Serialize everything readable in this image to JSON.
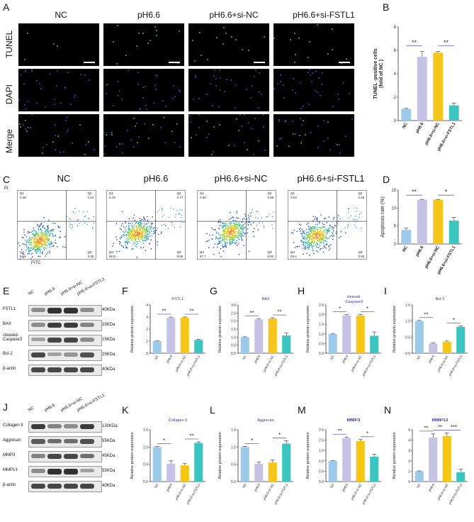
{
  "panel_letters": {
    "A": "A",
    "B": "B",
    "C": "C",
    "D": "D",
    "E": "E",
    "F": "F",
    "G": "G",
    "H": "H",
    "I": "I",
    "J": "J",
    "K": "K",
    "L": "L",
    "M": "M",
    "N": "N"
  },
  "groups": [
    "NC",
    "pH6.6",
    "pH6.6+si-NC",
    "pH6.6+si-FSTL1"
  ],
  "micro_rows": [
    "TUNEL",
    "DAPI",
    "Merge"
  ],
  "flow": {
    "ylabel": "PI",
    "xlabel": "FITC",
    "quadrants": [
      {
        "q1": "Q1",
        "q1v": "0.38",
        "q2": "Q2",
        "q2v": "1.54",
        "q3": "Q3",
        "q3v": "3.35",
        "q4": "Q4",
        "q4v": "94.6"
      },
      {
        "q1": "Q1",
        "q1v": "0.15",
        "q2": "Q2",
        "q2v": "3.77",
        "q3": "Q3",
        "q3v": "8.65",
        "q4": "Q4",
        "q4v": "88.0"
      },
      {
        "q1": "Q1",
        "q1v": "0.60",
        "q2": "Q2",
        "q2v": "5.86",
        "q3": "Q3",
        "q3v": "6.82",
        "q4": "Q4",
        "q4v": "87.7"
      },
      {
        "q1": "Q1",
        "q1v": "0.63",
        "q2": "Q2",
        "q2v": "2.46",
        "q3": "Q3",
        "q3v": "3.82",
        "q4": "Q4",
        "q4v": "93.4"
      }
    ]
  },
  "blot_E": {
    "lanes": [
      "NC",
      "pH6.6",
      "pH6.6+si-NC",
      "pH6.6+si-FSTL1"
    ],
    "rows": [
      {
        "name": "FSTL1",
        "kda": "40KDa",
        "intensity": [
          0.45,
          0.9,
          0.9,
          0.45
        ]
      },
      {
        "name": "BAX",
        "kda": "15KDa",
        "intensity": [
          0.45,
          0.85,
          0.85,
          0.5
        ]
      },
      {
        "name": "cleaved-Caspase3",
        "kda": "15KDa",
        "intensity": [
          0.35,
          0.8,
          0.8,
          0.45
        ]
      },
      {
        "name": "Bcl-2",
        "kda": "25KDa",
        "intensity": [
          0.8,
          0.35,
          0.4,
          0.75
        ]
      },
      {
        "name": "β-actin",
        "kda": "40KDa",
        "intensity": [
          0.8,
          0.8,
          0.8,
          0.8
        ]
      }
    ]
  },
  "blot_J": {
    "lanes": [
      "NC",
      "pH6.6",
      "pH6.6+si-NC",
      "pH6.6+si-FSTL1"
    ],
    "rows": [
      {
        "name": "Collagen II",
        "kda": "130KDa",
        "intensity": [
          0.85,
          0.5,
          0.45,
          0.85
        ]
      },
      {
        "name": "Aggrecan",
        "kda": "55KDa",
        "intensity": [
          0.7,
          0.6,
          0.6,
          0.75
        ]
      },
      {
        "name": "MMP3",
        "kda": "45KDa",
        "intensity": [
          0.5,
          0.8,
          0.8,
          0.6
        ]
      },
      {
        "name": "MMP13",
        "kda": "55KDa",
        "intensity": [
          0.45,
          0.9,
          0.9,
          0.35
        ]
      },
      {
        "name": "β-actin",
        "kda": "40KDa",
        "intensity": [
          0.8,
          0.8,
          0.8,
          0.8
        ]
      }
    ]
  },
  "colors": [
    "#9ecae9",
    "#c6c2e4",
    "#f5c518",
    "#3cc4c0"
  ],
  "chart_data": [
    {
      "id": "B",
      "type": "bar",
      "title": "",
      "ylabel": "TUNEL -positive cells\n(fold of NC )",
      "categories": [
        "NC",
        "pH6.6",
        "pH6.6+si-NC",
        "pH6.6+si-FSTL1"
      ],
      "values": [
        1.0,
        5.45,
        5.8,
        1.3
      ],
      "errors": [
        0.05,
        0.45,
        0.1,
        0.2
      ],
      "ylim": [
        0,
        8
      ],
      "yticks": [
        0,
        2,
        4,
        6,
        8
      ],
      "sig": [
        {
          "from": 0,
          "to": 1,
          "label": "**"
        },
        {
          "from": 2,
          "to": 3,
          "label": "**"
        }
      ]
    },
    {
      "id": "D",
      "type": "bar",
      "title": "",
      "ylabel": "Apoptosis rate (%)",
      "categories": [
        "NC",
        "pH6.6",
        "pH6.6+si-NC",
        "pH6.6+si-FSTL1"
      ],
      "values": [
        3.9,
        12.3,
        12.3,
        6.5
      ],
      "errors": [
        0.5,
        0.1,
        0.1,
        0.9
      ],
      "ylim": [
        0,
        15
      ],
      "yticks": [
        0,
        5,
        10,
        15
      ],
      "sig": [
        {
          "from": 0,
          "to": 1,
          "label": "**"
        },
        {
          "from": 2,
          "to": 3,
          "label": "*"
        }
      ]
    },
    {
      "id": "F",
      "type": "bar",
      "title": "FSTL1",
      "ylabel": "Relative protein expression",
      "categories": [
        "NC",
        "pH6.6",
        "pH6.6+si-NC",
        "pH6.6+si-FSTL1"
      ],
      "values": [
        1.0,
        2.95,
        2.95,
        1.1
      ],
      "errors": [
        0.02,
        0.05,
        0.05,
        0.05
      ],
      "ylim": [
        0,
        4
      ],
      "yticks": [
        0,
        1,
        2,
        3,
        4
      ],
      "sig": [
        {
          "from": 0,
          "to": 1,
          "label": "**"
        },
        {
          "from": 2,
          "to": 3,
          "label": "**"
        }
      ]
    },
    {
      "id": "G",
      "type": "bar",
      "title": "BAX",
      "ylabel": "Relative protein expression",
      "categories": [
        "NC",
        "pH6.6",
        "pH6.6+si-NC",
        "pH6.6+si-FSTL1"
      ],
      "values": [
        1.0,
        2.1,
        2.15,
        1.1
      ],
      "errors": [
        0.02,
        0.05,
        0.05,
        0.15
      ],
      "ylim": [
        0,
        3.0
      ],
      "yticks": [
        0,
        0.5,
        1.0,
        1.5,
        2.0,
        2.5,
        3.0
      ],
      "sig": [
        {
          "from": 0,
          "to": 1,
          "label": "**"
        },
        {
          "from": 2,
          "to": 3,
          "label": "**"
        }
      ]
    },
    {
      "id": "H",
      "type": "bar",
      "title": "cleaved\n-Caspase3",
      "ylabel": "Relative protein expression",
      "categories": [
        "NC",
        "pH6.6",
        "pH6.6+si-NC",
        "pH6.6+si-FSTL1"
      ],
      "values": [
        1.0,
        1.95,
        1.95,
        0.9
      ],
      "errors": [
        0.02,
        0.05,
        0.05,
        0.2
      ],
      "ylim": [
        0,
        2.5
      ],
      "yticks": [
        0,
        0.5,
        1.0,
        1.5,
        2.0,
        2.5
      ],
      "sig": [
        {
          "from": 0,
          "to": 1,
          "label": "*"
        },
        {
          "from": 2,
          "to": 3,
          "label": "*"
        }
      ]
    },
    {
      "id": "I",
      "type": "bar",
      "title": "Bcl-2",
      "ylabel": "Relative protein expression",
      "categories": [
        "NC",
        "pH6.6",
        "pH6.6+si-NC",
        "pH6.6+si-FSTL1"
      ],
      "values": [
        1.0,
        0.3,
        0.35,
        0.82
      ],
      "errors": [
        0.02,
        0.02,
        0.03,
        0.03
      ],
      "ylim": [
        0,
        1.5
      ],
      "yticks": [
        0,
        0.5,
        1.0,
        1.5
      ],
      "sig": [
        {
          "from": 0,
          "to": 1,
          "label": "**"
        },
        {
          "from": 2,
          "to": 3,
          "label": "*"
        }
      ]
    },
    {
      "id": "K",
      "type": "bar",
      "title": "Collagen II",
      "ylabel": "Relative protein expression",
      "categories": [
        "NC",
        "pH6.6",
        "pH6.6+si-NC",
        "pH6.6+si-FSTL1"
      ],
      "values": [
        1.0,
        0.52,
        0.47,
        1.12
      ],
      "errors": [
        0.02,
        0.08,
        0.05,
        0.03
      ],
      "ylim": [
        0,
        1.5
      ],
      "yticks": [
        0,
        0.5,
        1.0,
        1.5
      ],
      "sig": [
        {
          "from": 0,
          "to": 1,
          "label": "*"
        },
        {
          "from": 2,
          "to": 3,
          "label": "**"
        }
      ]
    },
    {
      "id": "L",
      "type": "bar",
      "title": "Aggrecan",
      "ylabel": "Relative protein expression",
      "categories": [
        "NC",
        "pH6.6",
        "pH6.6+si-NC",
        "pH6.6+si-FSTL1"
      ],
      "values": [
        1.0,
        0.52,
        0.55,
        1.1
      ],
      "errors": [
        0.02,
        0.05,
        0.08,
        0.08
      ],
      "ylim": [
        0,
        1.5
      ],
      "yticks": [
        0,
        0.5,
        1.0,
        1.5
      ],
      "sig": [
        {
          "from": 0,
          "to": 1,
          "label": "*"
        },
        {
          "from": 2,
          "to": 3,
          "label": "*"
        }
      ]
    },
    {
      "id": "M",
      "type": "bar",
      "title": "MMP3",
      "ylabel": "Relative protein expression",
      "categories": [
        "NC",
        "pH6.6",
        "pH6.6+si-NC",
        "pH6.6+si-FSTL1"
      ],
      "values": [
        1.0,
        2.1,
        1.95,
        1.2
      ],
      "errors": [
        0.02,
        0.05,
        0.08,
        0.12
      ],
      "ylim": [
        0,
        2.5
      ],
      "yticks": [
        0,
        0.5,
        1.0,
        1.5,
        2.0,
        2.5
      ],
      "sig": [
        {
          "from": 0,
          "to": 1,
          "label": "**"
        },
        {
          "from": 2,
          "to": 3,
          "label": "*"
        }
      ]
    },
    {
      "id": "N",
      "type": "bar",
      "title": "MMP13",
      "ylabel": "Relative protein expression",
      "categories": [
        "NC",
        "pH6.6",
        "pH6.6+si-NC",
        "pH6.6+si-FSTL1"
      ],
      "values": [
        1.0,
        4.25,
        4.4,
        0.9
      ],
      "errors": [
        0.03,
        0.35,
        0.3,
        0.3
      ],
      "ylim": [
        0,
        5
      ],
      "yticks": [
        0,
        1,
        2,
        3,
        4,
        5
      ],
      "sig": [
        {
          "from": 0,
          "to": 1,
          "label": "**"
        },
        {
          "from": 1,
          "to": 2,
          "label": "**"
        },
        {
          "from": 2,
          "to": 3,
          "label": "***"
        }
      ]
    }
  ]
}
